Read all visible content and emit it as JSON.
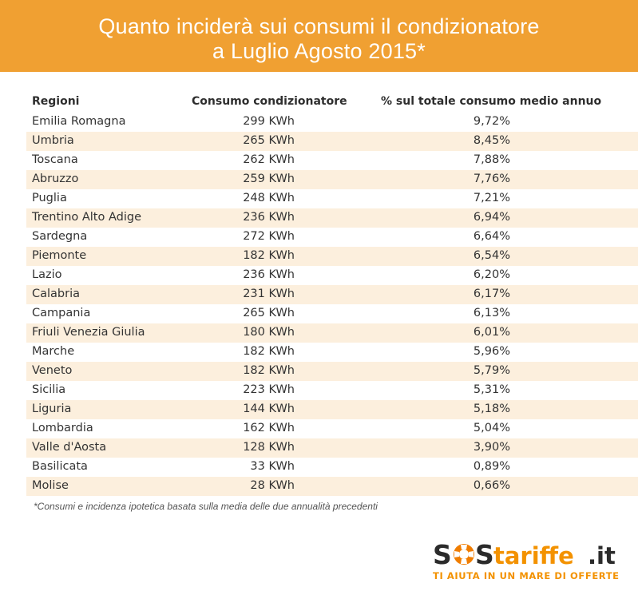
{
  "header": {
    "title_line1": "Quanto inciderà sui consumi il condizionatore",
    "title_line2": "a Luglio Agosto 2015*"
  },
  "chart_data": {
    "type": "table",
    "title": "Quanto inciderà sui consumi il condizionatore a Luglio Agosto 2015*",
    "columns": [
      "Regioni",
      "Consumo condizionatore",
      "% sul totale consumo medio annuo"
    ],
    "rows": [
      [
        "Emilia Romagna",
        "299 KWh",
        "9,72%"
      ],
      [
        "Umbria",
        "265 KWh",
        "8,45%"
      ],
      [
        "Toscana",
        "262 KWh",
        "7,88%"
      ],
      [
        "Abruzzo",
        "259 KWh",
        "7,76%"
      ],
      [
        "Puglia",
        "248 KWh",
        "7,21%"
      ],
      [
        "Trentino Alto Adige",
        "236 KWh",
        "6,94%"
      ],
      [
        "Sardegna",
        "272 KWh",
        "6,64%"
      ],
      [
        "Piemonte",
        "182 KWh",
        "6,54%"
      ],
      [
        "Lazio",
        "236 KWh",
        "6,20%"
      ],
      [
        "Calabria",
        "231 KWh",
        "6,17%"
      ],
      [
        "Campania",
        "265 KWh",
        "6,13%"
      ],
      [
        "Friuli Venezia Giulia",
        "180 KWh",
        "6,01%"
      ],
      [
        "Marche",
        "182 KWh",
        "5,96%"
      ],
      [
        "Veneto",
        "182 KWh",
        "5,79%"
      ],
      [
        "Sicilia",
        "223 KWh",
        "5,31%"
      ],
      [
        "Liguria",
        "144 KWh",
        "5,18%"
      ],
      [
        "Lombardia",
        "162 KWh",
        "5,04%"
      ],
      [
        "Valle d'Aosta",
        "128 KWh",
        "3,90%"
      ],
      [
        "Basilicata",
        "33 KWh",
        "0,89%"
      ],
      [
        "Molise",
        "28 KWh",
        "0,66%"
      ]
    ],
    "alt_row_color": "#fcefdd",
    "header_color": "#f0a032"
  },
  "footnote": "*Consumi e incidenza ipotetica basata sulla media delle due annualità precedenti",
  "logo": {
    "brand": "SOStariffe.it",
    "tagline": "TI AIUTA IN UN MARE DI OFFERTE",
    "colors": {
      "dark": "#2b2b2b",
      "orange": "#f39200",
      "float": "#f07d00"
    }
  }
}
